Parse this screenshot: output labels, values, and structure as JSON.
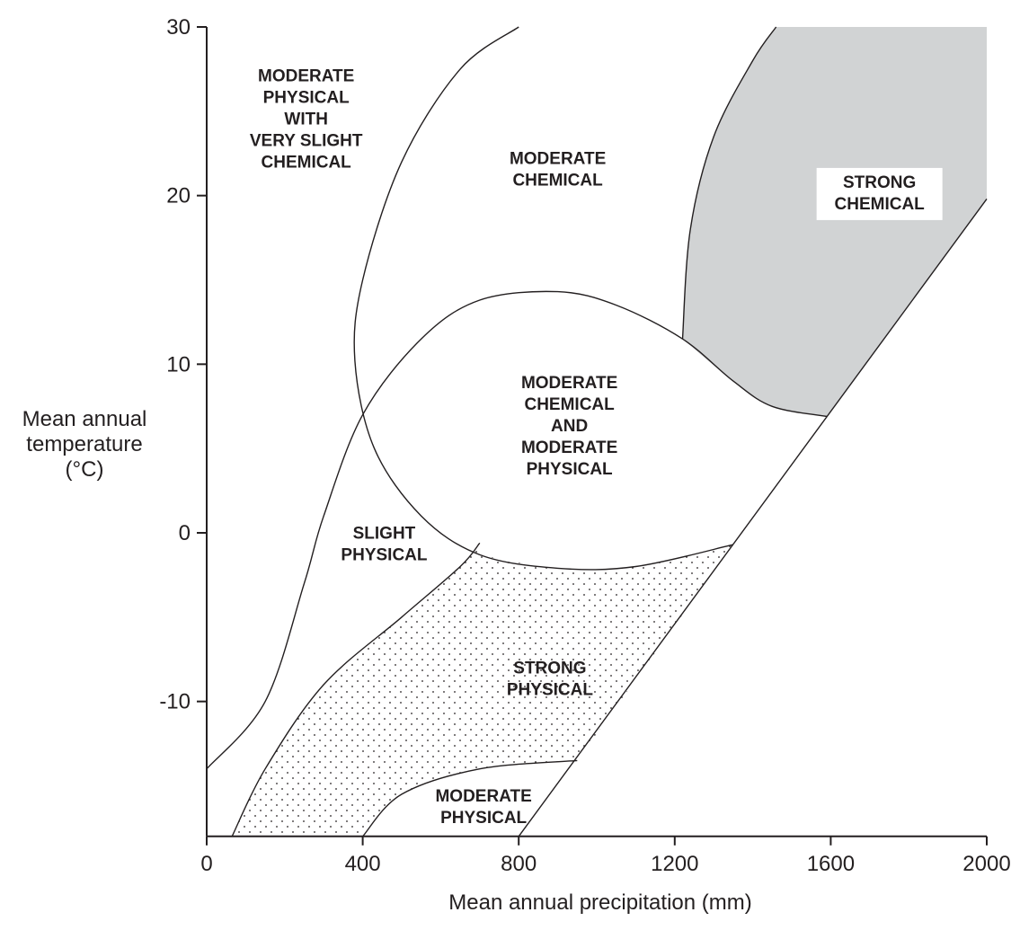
{
  "chart_data": {
    "type": "region-diagram",
    "xlabel": "Mean annual precipitation (mm)",
    "ylabel": [
      "Mean annual",
      "temperature",
      "(°C)"
    ],
    "xlim": [
      0,
      2000
    ],
    "ylim": [
      -18,
      30
    ],
    "x_ticks": [
      0,
      400,
      800,
      1200,
      1600,
      2000
    ],
    "y_ticks": [
      30,
      20,
      10,
      0,
      -10
    ],
    "y_tick_labels": [
      "30",
      "20",
      "10",
      "0",
      "-10"
    ],
    "grid": false,
    "regions": [
      {
        "id": "moderate-physical-slight-chemical",
        "lines": [
          "MODERATE",
          "PHYSICAL",
          "WITH",
          "VERY SLIGHT",
          "CHEMICAL"
        ],
        "center": [
          255,
          24.6
        ],
        "fill": "none"
      },
      {
        "id": "moderate-chemical",
        "lines": [
          "MODERATE",
          "CHEMICAL"
        ],
        "center": [
          900,
          21.6
        ],
        "fill": "none"
      },
      {
        "id": "strong-chemical",
        "lines": [
          "STRONG",
          "CHEMICAL"
        ],
        "center": [
          1725,
          20.2
        ],
        "fill": "#d1d3d4"
      },
      {
        "id": "moderate-chemical-and-physical",
        "lines": [
          "MODERATE",
          "CHEMICAL",
          "AND",
          "MODERATE",
          "PHYSICAL"
        ],
        "center": [
          930,
          6.4
        ],
        "fill": "none"
      },
      {
        "id": "slight-physical",
        "lines": [
          "SLIGHT",
          "PHYSICAL"
        ],
        "center": [
          455,
          -0.6
        ],
        "fill": "none"
      },
      {
        "id": "strong-physical",
        "lines": [
          "STRONG",
          "PHYSICAL"
        ],
        "center": [
          880,
          -8.6
        ],
        "fill": "stippled"
      },
      {
        "id": "moderate-physical",
        "lines": [
          "MODERATE",
          "PHYSICAL"
        ],
        "center": [
          710,
          -16.2
        ],
        "fill": "none"
      }
    ],
    "boundaries": [
      {
        "id": "curve-left-outer",
        "points": [
          [
            0,
            -14
          ],
          [
            150,
            -10
          ],
          [
            250,
            -3
          ],
          [
            300,
            1
          ],
          [
            400,
            7
          ],
          [
            550,
            11.5
          ],
          [
            700,
            13.8
          ],
          [
            900,
            14.3
          ],
          [
            1050,
            13.5
          ],
          [
            1220,
            11.5
          ],
          [
            1350,
            9
          ],
          [
            1450,
            7.5
          ],
          [
            1590,
            6.9
          ]
        ]
      },
      {
        "id": "curve-moderate-chemical-boundary",
        "points": [
          [
            800,
            30
          ],
          [
            650,
            27.5
          ],
          [
            500,
            22
          ],
          [
            400,
            15
          ],
          [
            380,
            10.2
          ],
          [
            430,
            5
          ],
          [
            550,
            1
          ],
          [
            700,
            -1.3
          ],
          [
            900,
            -2.1
          ],
          [
            1100,
            -2
          ],
          [
            1350,
            -0.7
          ]
        ]
      },
      {
        "id": "curve-strong-physical-upper",
        "points": [
          [
            65,
            -18
          ],
          [
            150,
            -14
          ],
          [
            300,
            -9
          ],
          [
            500,
            -5
          ],
          [
            650,
            -2
          ],
          [
            700,
            -0.6
          ]
        ]
      },
      {
        "id": "curve-moderate-physical-top",
        "points": [
          [
            400,
            -18
          ],
          [
            500,
            -15.5
          ],
          [
            700,
            -14
          ],
          [
            950,
            -13.5
          ]
        ]
      },
      {
        "id": "curve-strong-chemical-left",
        "points": [
          [
            1220,
            11.5
          ],
          [
            1240,
            18
          ],
          [
            1300,
            23.5
          ],
          [
            1400,
            28
          ],
          [
            1460,
            30
          ]
        ]
      },
      {
        "id": "line-diagonal-right",
        "points": [
          [
            800,
            -18
          ],
          [
            2000,
            19.8
          ]
        ]
      }
    ]
  }
}
